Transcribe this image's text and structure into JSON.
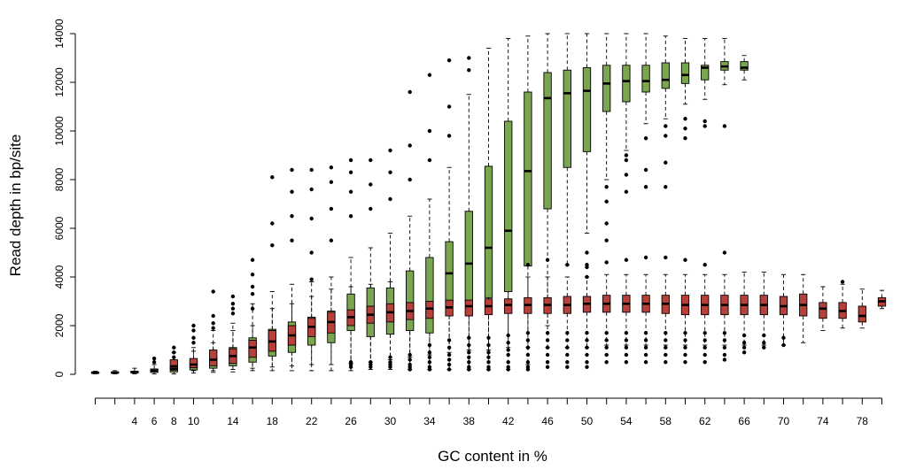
{
  "chart_data": {
    "type": "box",
    "xlabel": "GC content in %",
    "ylabel": "Read depth in bp/site",
    "ylim": [
      0,
      14000
    ],
    "y_ticks": [
      0,
      2000,
      4000,
      6000,
      8000,
      10000,
      12000,
      14000
    ],
    "x_tick_labels": [
      "4",
      "6",
      "8",
      "10",
      "14",
      "18",
      "22",
      "26",
      "30",
      "34",
      "38",
      "42",
      "46",
      "50",
      "54",
      "58",
      "62",
      "66",
      "70",
      "74",
      "78"
    ],
    "grid": false,
    "legend": "none",
    "colors": {
      "green": "#7aa64f",
      "red": "#b7403a",
      "axis": "#000000"
    },
    "series": [
      {
        "color": "green",
        "boxes": [
          {
            "gc": 0,
            "min": 20,
            "q1": 50,
            "median": 70,
            "q3": 90,
            "max": 130,
            "outliers": []
          },
          {
            "gc": 2,
            "min": 20,
            "q1": 50,
            "median": 70,
            "q3": 100,
            "max": 150,
            "outliers": []
          },
          {
            "gc": 4,
            "min": 20,
            "q1": 60,
            "median": 90,
            "q3": 130,
            "max": 250,
            "outliers": []
          },
          {
            "gc": 6,
            "min": 20,
            "q1": 80,
            "median": 150,
            "q3": 220,
            "max": 400,
            "outliers": [
              500,
              650
            ]
          },
          {
            "gc": 8,
            "min": 20,
            "q1": 100,
            "median": 200,
            "q3": 300,
            "max": 500,
            "outliers": [
              700,
              900
            ]
          },
          {
            "gc": 10,
            "min": 50,
            "q1": 180,
            "median": 300,
            "q3": 550,
            "max": 950,
            "outliers": [
              1300,
              1800,
              2000
            ]
          },
          {
            "gc": 12,
            "min": 80,
            "q1": 250,
            "median": 450,
            "q3": 700,
            "max": 1300,
            "outliers": [
              1900,
              2400,
              3400
            ]
          },
          {
            "gc": 14,
            "min": 100,
            "q1": 350,
            "median": 650,
            "q3": 1100,
            "max": 2100,
            "outliers": [
              2700,
              3200
            ]
          },
          {
            "gc": 16,
            "min": 150,
            "q1": 500,
            "median": 1000,
            "q3": 1500,
            "max": 2900,
            "outliers": [
              3600,
              4100,
              4700
            ]
          },
          {
            "gc": 18,
            "min": 150,
            "q1": 750,
            "median": 1200,
            "q3": 1850,
            "max": 3400,
            "outliers": [
              5300,
              6200,
              8100
            ]
          },
          {
            "gc": 20,
            "min": 150,
            "q1": 900,
            "median": 1500,
            "q3": 2150,
            "max": 3700,
            "outliers": [
              5500,
              6500,
              7500,
              8400
            ]
          },
          {
            "gc": 22,
            "min": 150,
            "q1": 1200,
            "median": 1850,
            "q3": 2350,
            "max": 3800,
            "outliers": [
              5000,
              6400,
              7600,
              8400
            ]
          },
          {
            "gc": 24,
            "min": 150,
            "q1": 1300,
            "median": 1900,
            "q3": 2600,
            "max": 4000,
            "outliers": [
              5500,
              6800,
              7900,
              8500
            ]
          },
          {
            "gc": 26,
            "min": 150,
            "q1": 1800,
            "median": 2250,
            "q3": 3300,
            "max": 4800,
            "outliers": [
              6500,
              7500,
              8300,
              8800
            ]
          },
          {
            "gc": 28,
            "min": 200,
            "q1": 1550,
            "median": 2250,
            "q3": 3550,
            "max": 5200,
            "outliers": [
              6800,
              7800,
              8800
            ]
          },
          {
            "gc": 30,
            "min": 200,
            "q1": 1650,
            "median": 2350,
            "q3": 3550,
            "max": 5800,
            "outliers": [
              7200,
              8300,
              9200
            ]
          },
          {
            "gc": 32,
            "min": 200,
            "q1": 1800,
            "median": 2650,
            "q3": 4250,
            "max": 6500,
            "outliers": [
              8000,
              9400,
              11600
            ]
          },
          {
            "gc": 34,
            "min": 200,
            "q1": 1700,
            "median": 2850,
            "q3": 4800,
            "max": 7200,
            "outliers": [
              8800,
              10000,
              12300
            ]
          },
          {
            "gc": 36,
            "min": 200,
            "q1": 2950,
            "median": 4150,
            "q3": 5450,
            "max": 8500,
            "outliers": [
              9800,
              11000,
              12900
            ]
          },
          {
            "gc": 38,
            "min": 200,
            "q1": 3000,
            "median": 4550,
            "q3": 6700,
            "max": 11500,
            "outliers": [
              12500,
              13000
            ]
          },
          {
            "gc": 40,
            "min": 200,
            "q1": 3150,
            "median": 5200,
            "q3": 8550,
            "max": 13400,
            "outliers": []
          },
          {
            "gc": 42,
            "min": 200,
            "q1": 3400,
            "median": 5900,
            "q3": 10400,
            "max": 13800,
            "outliers": []
          },
          {
            "gc": 44,
            "min": 400,
            "q1": 4450,
            "median": 8350,
            "q3": 11600,
            "max": 13900,
            "outliers": []
          },
          {
            "gc": 46,
            "min": 2000,
            "q1": 6800,
            "median": 11350,
            "q3": 12400,
            "max": 14000,
            "outliers": []
          },
          {
            "gc": 48,
            "min": 4500,
            "q1": 8500,
            "median": 11550,
            "q3": 12500,
            "max": 14000,
            "outliers": []
          },
          {
            "gc": 50,
            "min": 5800,
            "q1": 9150,
            "median": 11650,
            "q3": 12600,
            "max": 14000,
            "outliers": [
              4000,
              4500,
              5000
            ]
          },
          {
            "gc": 52,
            "min": 8000,
            "q1": 10800,
            "median": 11950,
            "q3": 12700,
            "max": 14000,
            "outliers": [
              5500,
              6200,
              7100,
              7700
            ]
          },
          {
            "gc": 54,
            "min": 9200,
            "q1": 11200,
            "median": 12050,
            "q3": 12700,
            "max": 14000,
            "outliers": [
              7500,
              8200,
              8800,
              9000
            ]
          },
          {
            "gc": 56,
            "min": 10300,
            "q1": 11600,
            "median": 12050,
            "q3": 12700,
            "max": 14000,
            "outliers": [
              7700,
              8400,
              9700
            ]
          },
          {
            "gc": 58,
            "min": 10500,
            "q1": 11750,
            "median": 12100,
            "q3": 12800,
            "max": 13900,
            "outliers": [
              7700,
              8700,
              9800,
              10200
            ]
          },
          {
            "gc": 60,
            "min": 11100,
            "q1": 11950,
            "median": 12300,
            "q3": 12800,
            "max": 13800,
            "outliers": [
              9700,
              10100,
              10500
            ]
          },
          {
            "gc": 62,
            "min": 11300,
            "q1": 12100,
            "median": 12600,
            "q3": 12700,
            "max": 13800,
            "outliers": [
              10200,
              10400
            ]
          },
          {
            "gc": 64,
            "min": 11900,
            "q1": 12500,
            "median": 12650,
            "q3": 12850,
            "max": 13800,
            "outliers": [
              10200
            ]
          },
          {
            "gc": 66,
            "min": 12100,
            "q1": 12500,
            "median": 12600,
            "q3": 12850,
            "max": 13100,
            "outliers": []
          }
        ]
      },
      {
        "color": "red",
        "boxes": [
          {
            "gc": 8,
            "min": 150,
            "q1": 250,
            "median": 330,
            "q3": 600,
            "max": 900,
            "outliers": [
              1100
            ]
          },
          {
            "gc": 10,
            "min": 150,
            "q1": 270,
            "median": 400,
            "q3": 650,
            "max": 1100,
            "outliers": [
              1500
            ]
          },
          {
            "gc": 12,
            "min": 150,
            "q1": 350,
            "median": 600,
            "q3": 1000,
            "max": 1800,
            "outliers": [
              2100
            ]
          },
          {
            "gc": 14,
            "min": 200,
            "q1": 450,
            "median": 750,
            "q3": 1050,
            "max": 1800,
            "outliers": [
              2500,
              2900
            ]
          },
          {
            "gc": 16,
            "min": 250,
            "q1": 700,
            "median": 1100,
            "q3": 1400,
            "max": 2000,
            "outliers": [
              2700,
              3300
            ]
          },
          {
            "gc": 18,
            "min": 300,
            "q1": 950,
            "median": 1350,
            "q3": 1800,
            "max": 2700,
            "outliers": []
          },
          {
            "gc": 20,
            "min": 350,
            "q1": 1200,
            "median": 1600,
            "q3": 2000,
            "max": 2900,
            "outliers": []
          },
          {
            "gc": 22,
            "min": 400,
            "q1": 1550,
            "median": 1950,
            "q3": 2300,
            "max": 3200,
            "outliers": [
              3900
            ]
          },
          {
            "gc": 24,
            "min": 400,
            "q1": 1700,
            "median": 2150,
            "q3": 2550,
            "max": 3500,
            "outliers": []
          },
          {
            "gc": 26,
            "min": 450,
            "q1": 2000,
            "median": 2350,
            "q3": 2650,
            "max": 3600,
            "outliers": [
              500,
              400,
              300
            ]
          },
          {
            "gc": 28,
            "min": 500,
            "q1": 2100,
            "median": 2450,
            "q3": 2800,
            "max": 3700,
            "outliers": [
              500,
              400,
              300
            ]
          },
          {
            "gc": 30,
            "min": 600,
            "q1": 2150,
            "median": 2550,
            "q3": 2900,
            "max": 3800,
            "outliers": [
              700,
              500,
              400,
              300
            ]
          },
          {
            "gc": 32,
            "min": 700,
            "q1": 2250,
            "median": 2600,
            "q3": 2950,
            "max": 3800,
            "outliers": [
              800,
              600,
              400,
              300,
              200
            ]
          },
          {
            "gc": 34,
            "min": 800,
            "q1": 2300,
            "median": 2700,
            "q3": 3000,
            "max": 3900,
            "outliers": [
              1200,
              900,
              700,
              500,
              300,
              200
            ]
          },
          {
            "gc": 36,
            "min": 900,
            "q1": 2400,
            "median": 2750,
            "q3": 3050,
            "max": 3900,
            "outliers": [
              1400,
              1100,
              800,
              600,
              400,
              200
            ]
          },
          {
            "gc": 38,
            "min": 1000,
            "q1": 2400,
            "median": 2800,
            "q3": 3050,
            "max": 3900,
            "outliers": [
              1500,
              1200,
              900,
              700,
              500,
              300,
              200
            ]
          },
          {
            "gc": 40,
            "min": 1000,
            "q1": 2450,
            "median": 2800,
            "q3": 3100,
            "max": 4000,
            "outliers": [
              1500,
              1200,
              900,
              700,
              500,
              300,
              200
            ]
          },
          {
            "gc": 42,
            "min": 1100,
            "q1": 2500,
            "median": 2850,
            "q3": 3100,
            "max": 3900,
            "outliers": [
              1600,
              1300,
              1000,
              800,
              500,
              300,
              200
            ]
          },
          {
            "gc": 44,
            "min": 1100,
            "q1": 2500,
            "median": 2850,
            "q3": 3150,
            "max": 4000,
            "outliers": [
              4500,
              1700,
              1400,
              1100,
              800,
              500,
              300,
              200
            ]
          },
          {
            "gc": 46,
            "min": 1100,
            "q1": 2500,
            "median": 2850,
            "q3": 3150,
            "max": 4000,
            "outliers": [
              4700,
              1700,
              1400,
              1100,
              800,
              500,
              300
            ]
          },
          {
            "gc": 48,
            "min": 1100,
            "q1": 2500,
            "median": 2850,
            "q3": 3200,
            "max": 4000,
            "outliers": [
              4500,
              1700,
              1400,
              1100,
              800,
              500,
              300
            ]
          },
          {
            "gc": 50,
            "min": 1100,
            "q1": 2550,
            "median": 2900,
            "q3": 3200,
            "max": 4000,
            "outliers": [
              4400,
              1700,
              1400,
              1100,
              800,
              500,
              300
            ]
          },
          {
            "gc": 52,
            "min": 1200,
            "q1": 2550,
            "median": 2900,
            "q3": 3250,
            "max": 4100,
            "outliers": [
              4600,
              1700,
              1400,
              1100,
              800,
              500
            ]
          },
          {
            "gc": 54,
            "min": 1200,
            "q1": 2550,
            "median": 2900,
            "q3": 3250,
            "max": 4100,
            "outliers": [
              4700,
              1700,
              1400,
              1100,
              800,
              500
            ]
          },
          {
            "gc": 56,
            "min": 1200,
            "q1": 2550,
            "median": 2900,
            "q3": 3250,
            "max": 4100,
            "outliers": [
              4800,
              1700,
              1400,
              1100,
              800,
              500
            ]
          },
          {
            "gc": 58,
            "min": 1200,
            "q1": 2500,
            "median": 2900,
            "q3": 3250,
            "max": 4100,
            "outliers": [
              4800,
              1700,
              1400,
              1100,
              800,
              500
            ]
          },
          {
            "gc": 60,
            "min": 1200,
            "q1": 2450,
            "median": 2850,
            "q3": 3250,
            "max": 4100,
            "outliers": [
              4700,
              1700,
              1400,
              1100,
              800,
              500
            ]
          },
          {
            "gc": 62,
            "min": 1200,
            "q1": 2450,
            "median": 2850,
            "q3": 3250,
            "max": 4100,
            "outliers": [
              4500,
              1700,
              1400,
              1100,
              800,
              500
            ]
          },
          {
            "gc": 64,
            "min": 1200,
            "q1": 2450,
            "median": 2850,
            "q3": 3250,
            "max": 4100,
            "outliers": [
              5000,
              1700,
              1400,
              1100,
              800,
              600
            ]
          },
          {
            "gc": 66,
            "min": 1200,
            "q1": 2450,
            "median": 2850,
            "q3": 3250,
            "max": 4200,
            "outliers": [
              1600,
              1300,
              1100,
              900
            ]
          },
          {
            "gc": 68,
            "min": 1200,
            "q1": 2450,
            "median": 2850,
            "q3": 3250,
            "max": 4200,
            "outliers": [
              1600,
              1300,
              1100
            ]
          },
          {
            "gc": 70,
            "min": 1200,
            "q1": 2450,
            "median": 2800,
            "q3": 3200,
            "max": 4100,
            "outliers": [
              1500,
              1200
            ]
          },
          {
            "gc": 72,
            "min": 1300,
            "q1": 2400,
            "median": 2850,
            "q3": 3300,
            "max": 4100,
            "outliers": []
          },
          {
            "gc": 74,
            "min": 1800,
            "q1": 2300,
            "median": 2700,
            "q3": 2950,
            "max": 3600,
            "outliers": []
          },
          {
            "gc": 76,
            "min": 1900,
            "q1": 2300,
            "median": 2600,
            "q3": 2950,
            "max": 3700,
            "outliers": [
              3800
            ]
          },
          {
            "gc": 78,
            "min": 1900,
            "q1": 2150,
            "median": 2400,
            "q3": 2800,
            "max": 3500,
            "outliers": []
          },
          {
            "gc": 80,
            "min": 2700,
            "q1": 2800,
            "median": 3000,
            "q3": 3150,
            "max": 3450,
            "outliers": []
          }
        ]
      }
    ]
  }
}
